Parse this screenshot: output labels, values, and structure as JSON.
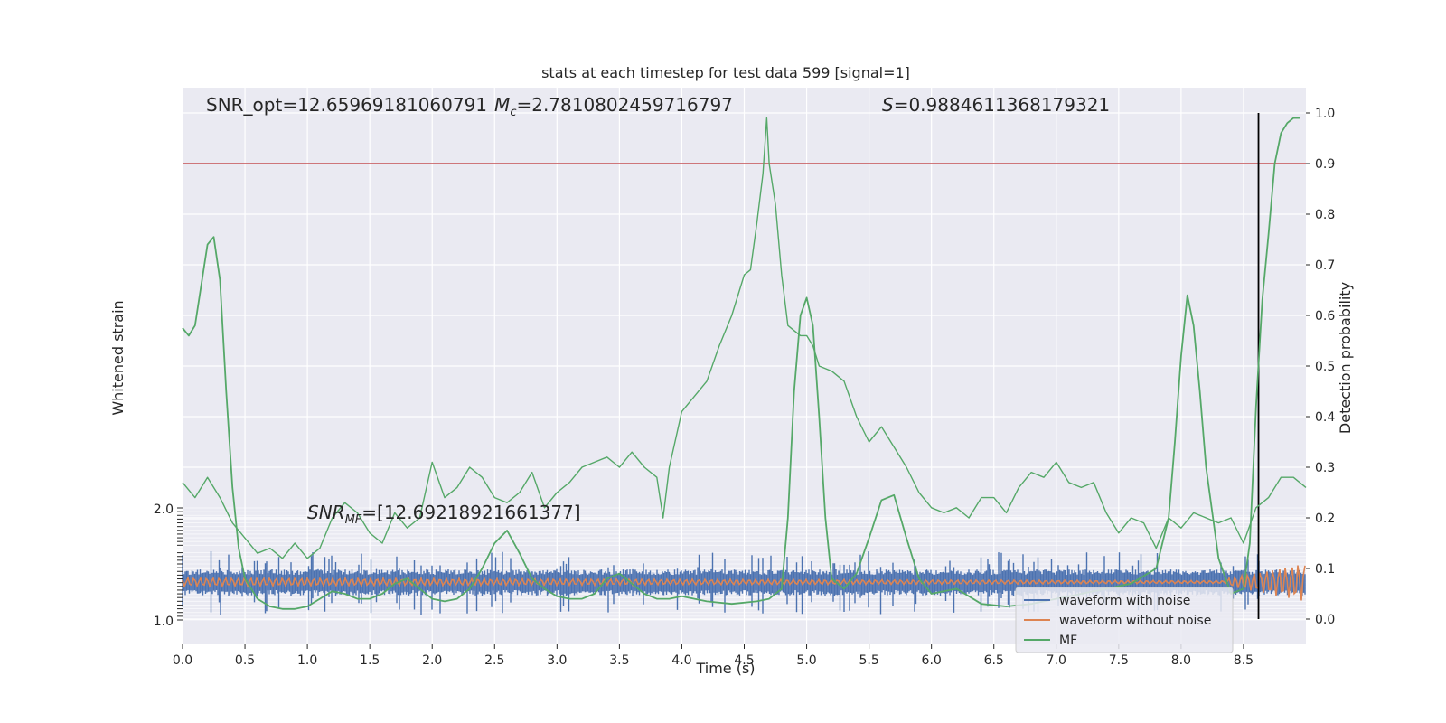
{
  "chart_data": {
    "type": "line",
    "title": "stats at each timestep for test data 599 [signal=1]",
    "xlabel": "Time (s)",
    "ylabel_left": "Whitened strain",
    "ylabel_right": "Detection probability",
    "xlim": [
      0.0,
      9.0
    ],
    "xticks": [
      "0.0",
      "0.5",
      "1.0",
      "1.5",
      "2.0",
      "2.5",
      "3.0",
      "3.5",
      "4.0",
      "4.5",
      "5.0",
      "5.5",
      "6.0",
      "6.5",
      "7.0",
      "7.5",
      "8.0",
      "8.5"
    ],
    "ylim_right": [
      -0.05,
      1.05
    ],
    "yticks_right": [
      "0.0",
      "0.1",
      "0.2",
      "0.3",
      "0.4",
      "0.5",
      "0.6",
      "0.7",
      "0.8",
      "0.9",
      "1.0"
    ],
    "left_axis_ticks": {
      "top": "2.0",
      "bottom": "1.0"
    },
    "grid": true,
    "legend_placement": "lower-right",
    "annotations": {
      "snr_opt": "SNR_opt=12.65969181060791",
      "mc_prefix": "M",
      "mc_sub": "c",
      "mc_value": "=2.7810802459716797",
      "s_prefix": "S",
      "s_value": "=0.9884611368179321",
      "snr_mf_prefix": "SNR",
      "snr_mf_sub": "MF",
      "snr_mf_value": "=[12.69218921661377]"
    },
    "threshold": {
      "value": 0.9,
      "color": "#c44e52"
    },
    "trigger_time": 8.62,
    "legend": [
      {
        "label": "waveform with noise",
        "color": "#4c72b0"
      },
      {
        "label": "waveform without noise",
        "color": "#dd8452"
      },
      {
        "label": "MF",
        "color": "#55a868"
      }
    ],
    "series": [
      {
        "name": "MF",
        "color": "#55a868",
        "x": [
          0.0,
          0.05,
          0.1,
          0.15,
          0.2,
          0.25,
          0.3,
          0.35,
          0.4,
          0.45,
          0.5,
          0.55,
          0.6,
          0.7,
          0.8,
          0.9,
          1.0,
          1.1,
          1.2,
          1.3,
          1.4,
          1.5,
          1.6,
          1.7,
          1.8,
          1.9,
          2.0,
          2.1,
          2.2,
          2.3,
          2.4,
          2.5,
          2.6,
          2.7,
          2.8,
          2.9,
          3.0,
          3.1,
          3.2,
          3.3,
          3.4,
          3.5,
          3.6,
          3.7,
          3.8,
          3.9,
          4.0,
          4.2,
          4.4,
          4.6,
          4.7,
          4.8,
          4.85,
          4.9,
          4.95,
          5.0,
          5.05,
          5.1,
          5.15,
          5.2,
          5.3,
          5.4,
          5.5,
          5.6,
          5.7,
          5.8,
          5.9,
          6.0,
          6.2,
          6.4,
          6.6,
          6.8,
          7.0,
          7.2,
          7.4,
          7.6,
          7.8,
          7.9,
          7.95,
          8.0,
          8.05,
          8.1,
          8.15,
          8.2,
          8.3,
          8.4,
          8.5,
          8.55,
          8.6,
          8.65,
          8.7,
          8.75,
          8.8,
          8.85,
          8.9,
          8.95
        ],
        "y": [
          0.575,
          0.56,
          0.58,
          0.66,
          0.74,
          0.755,
          0.67,
          0.45,
          0.26,
          0.14,
          0.08,
          0.06,
          0.04,
          0.025,
          0.02,
          0.02,
          0.025,
          0.04,
          0.055,
          0.05,
          0.04,
          0.04,
          0.05,
          0.07,
          0.08,
          0.06,
          0.04,
          0.035,
          0.04,
          0.06,
          0.1,
          0.15,
          0.175,
          0.13,
          0.08,
          0.06,
          0.045,
          0.04,
          0.04,
          0.05,
          0.08,
          0.09,
          0.07,
          0.05,
          0.04,
          0.04,
          0.045,
          0.035,
          0.03,
          0.035,
          0.04,
          0.06,
          0.2,
          0.45,
          0.6,
          0.635,
          0.58,
          0.4,
          0.2,
          0.08,
          0.06,
          0.09,
          0.16,
          0.235,
          0.245,
          0.16,
          0.08,
          0.05,
          0.06,
          0.03,
          0.025,
          0.03,
          0.04,
          0.05,
          0.06,
          0.07,
          0.1,
          0.2,
          0.35,
          0.52,
          0.64,
          0.58,
          0.45,
          0.3,
          0.12,
          0.05,
          0.06,
          0.15,
          0.42,
          0.63,
          0.76,
          0.9,
          0.96,
          0.98,
          0.99,
          0.99
        ]
      },
      {
        "name": "Detection probability (unlabeled)",
        "color": "#55a868",
        "x": [
          0.0,
          0.1,
          0.2,
          0.3,
          0.4,
          0.5,
          0.6,
          0.7,
          0.8,
          0.9,
          1.0,
          1.1,
          1.2,
          1.3,
          1.4,
          1.5,
          1.6,
          1.7,
          1.8,
          1.9,
          2.0,
          2.1,
          2.2,
          2.3,
          2.4,
          2.5,
          2.6,
          2.7,
          2.8,
          2.9,
          3.0,
          3.1,
          3.2,
          3.3,
          3.4,
          3.5,
          3.6,
          3.7,
          3.8,
          3.85,
          3.9,
          4.0,
          4.1,
          4.2,
          4.3,
          4.4,
          4.5,
          4.55,
          4.6,
          4.65,
          4.68,
          4.7,
          4.75,
          4.8,
          4.85,
          4.9,
          4.95,
          5.0,
          5.05,
          5.1,
          5.2,
          5.3,
          5.4,
          5.5,
          5.6,
          5.7,
          5.8,
          5.9,
          6.0,
          6.1,
          6.2,
          6.3,
          6.4,
          6.5,
          6.6,
          6.7,
          6.8,
          6.9,
          7.0,
          7.1,
          7.2,
          7.3,
          7.4,
          7.5,
          7.6,
          7.7,
          7.8,
          7.9,
          8.0,
          8.1,
          8.2,
          8.3,
          8.4,
          8.5,
          8.6,
          8.7,
          8.8,
          8.9,
          9.0
        ],
        "y": [
          0.27,
          0.24,
          0.28,
          0.24,
          0.19,
          0.16,
          0.13,
          0.14,
          0.12,
          0.15,
          0.12,
          0.14,
          0.2,
          0.23,
          0.21,
          0.17,
          0.15,
          0.21,
          0.18,
          0.2,
          0.31,
          0.24,
          0.26,
          0.3,
          0.28,
          0.24,
          0.23,
          0.25,
          0.29,
          0.22,
          0.25,
          0.27,
          0.3,
          0.31,
          0.32,
          0.3,
          0.33,
          0.3,
          0.28,
          0.2,
          0.3,
          0.41,
          0.44,
          0.47,
          0.54,
          0.6,
          0.68,
          0.69,
          0.78,
          0.88,
          0.99,
          0.9,
          0.82,
          0.68,
          0.58,
          0.57,
          0.56,
          0.56,
          0.54,
          0.5,
          0.49,
          0.47,
          0.4,
          0.35,
          0.38,
          0.34,
          0.3,
          0.25,
          0.22,
          0.21,
          0.22,
          0.2,
          0.24,
          0.24,
          0.21,
          0.26,
          0.29,
          0.28,
          0.31,
          0.27,
          0.26,
          0.27,
          0.21,
          0.17,
          0.2,
          0.19,
          0.14,
          0.2,
          0.18,
          0.21,
          0.2,
          0.19,
          0.2,
          0.15,
          0.22,
          0.24,
          0.28,
          0.28,
          0.26
        ]
      }
    ]
  }
}
